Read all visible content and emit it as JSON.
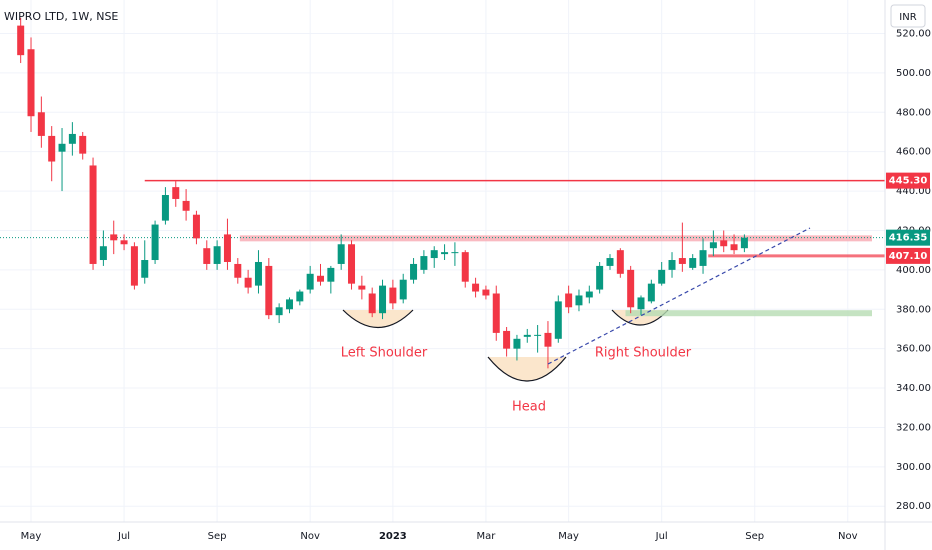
{
  "chart_data": {
    "type": "candlestick",
    "title": "WIPRO LTD, 1W, NSE",
    "currency": "INR",
    "up_color": "#089981",
    "down_color": "#f23645",
    "open": [
      524,
      512,
      480,
      468,
      460,
      464,
      468,
      453,
      405,
      418,
      415,
      412,
      396,
      405,
      425,
      442,
      435,
      428,
      411,
      403,
      418,
      403,
      396,
      392,
      402,
      377,
      380,
      384,
      390,
      397,
      394,
      403,
      413,
      392,
      388,
      378,
      391,
      385,
      395,
      400,
      406,
      408,
      409,
      409,
      393,
      390,
      388,
      369,
      360,
      366,
      367,
      368,
      365,
      388,
      382,
      386,
      390,
      402,
      410,
      400,
      380,
      384,
      393,
      400,
      406,
      401,
      402,
      411,
      415,
      413,
      411
    ],
    "high": [
      528,
      518,
      488,
      473,
      472,
      475,
      470,
      457,
      420,
      425,
      418,
      414,
      415,
      425,
      442,
      445,
      441,
      430,
      415,
      415,
      426,
      406,
      400,
      410,
      406,
      383,
      386,
      390,
      402,
      403,
      402,
      418,
      415,
      397,
      391,
      395,
      395,
      398,
      406,
      410,
      412,
      413,
      414,
      410,
      396,
      392,
      392,
      371,
      367,
      370,
      372,
      374,
      387,
      392,
      390,
      392,
      404,
      408,
      411,
      402,
      387,
      395,
      404,
      409,
      424,
      408,
      416,
      420,
      420,
      418,
      418
    ],
    "low": [
      505,
      470,
      462,
      445,
      440,
      458,
      456,
      400,
      402,
      408,
      410,
      390,
      393,
      403,
      423,
      432,
      425,
      413,
      400,
      400,
      400,
      393,
      388,
      388,
      375,
      373,
      378,
      382,
      388,
      392,
      388,
      400,
      390,
      385,
      376,
      375,
      380,
      383,
      393,
      398,
      401,
      405,
      402,
      391,
      386,
      385,
      364,
      356,
      354,
      363,
      358,
      350,
      363,
      378,
      379,
      383,
      388,
      400,
      396,
      378,
      377,
      383,
      392,
      396,
      399,
      400,
      398,
      407,
      409,
      408,
      409
    ],
    "close": [
      509,
      478,
      468,
      455,
      464,
      469,
      459,
      403,
      412,
      415,
      413,
      392,
      405,
      423,
      438,
      436,
      430,
      416,
      403,
      412,
      404,
      396,
      391,
      404,
      377,
      381,
      385,
      389,
      398,
      394,
      401,
      413,
      393,
      390,
      378,
      392,
      383,
      395,
      403,
      407,
      410,
      409,
      409,
      394,
      389,
      387,
      368,
      360,
      365,
      367,
      367,
      361,
      384,
      381,
      387,
      389,
      402,
      406,
      398,
      381,
      386,
      393,
      400,
      405,
      403,
      406,
      410,
      414,
      412,
      410,
      416.35
    ],
    "xlim": [
      -2,
      83.6
    ],
    "ylim": [
      272,
      537
    ],
    "yticks": [
      {
        "value": 280,
        "label": "280.00"
      },
      {
        "value": 300,
        "label": "300.00"
      },
      {
        "value": 320,
        "label": "320.00"
      },
      {
        "value": 340,
        "label": "340.00"
      },
      {
        "value": 360,
        "label": "360.00"
      },
      {
        "value": 380,
        "label": "380.00"
      },
      {
        "value": 400,
        "label": "400.00"
      },
      {
        "value": 420,
        "label": "420.00"
      },
      {
        "value": 440,
        "label": "440.00"
      },
      {
        "value": 460,
        "label": "460.00"
      },
      {
        "value": 480,
        "label": "480.00"
      },
      {
        "value": 500,
        "label": "500.00"
      },
      {
        "value": 520,
        "label": "520.00"
      }
    ],
    "xticks": [
      {
        "value": 1,
        "label": "May"
      },
      {
        "value": 10,
        "label": "Jul"
      },
      {
        "value": 19,
        "label": "Sep"
      },
      {
        "value": 28,
        "label": "Nov"
      },
      {
        "value": 36,
        "label": "2023"
      },
      {
        "value": 45,
        "label": "Mar"
      },
      {
        "value": 53,
        "label": "May"
      },
      {
        "value": 62,
        "label": "Jul"
      },
      {
        "value": 71,
        "label": "Sep"
      },
      {
        "value": 80,
        "label": "Nov"
      }
    ],
    "levels": [
      {
        "value": 445.3,
        "label": "445.30",
        "color": "#f23645"
      },
      {
        "value": 407.1,
        "label": "407.10",
        "color": "#f23645"
      }
    ],
    "last_price": {
      "value": 416.35,
      "label": "416.35",
      "color": "#089981"
    },
    "zones": [
      {
        "value": 416,
        "color": "#f7a9b1"
      },
      {
        "value": 378,
        "color": "#b7dcb3"
      }
    ],
    "annotations": [
      {
        "text": "Left Shoulder"
      },
      {
        "text": "Head"
      },
      {
        "text": "Right Shoulder"
      }
    ]
  }
}
